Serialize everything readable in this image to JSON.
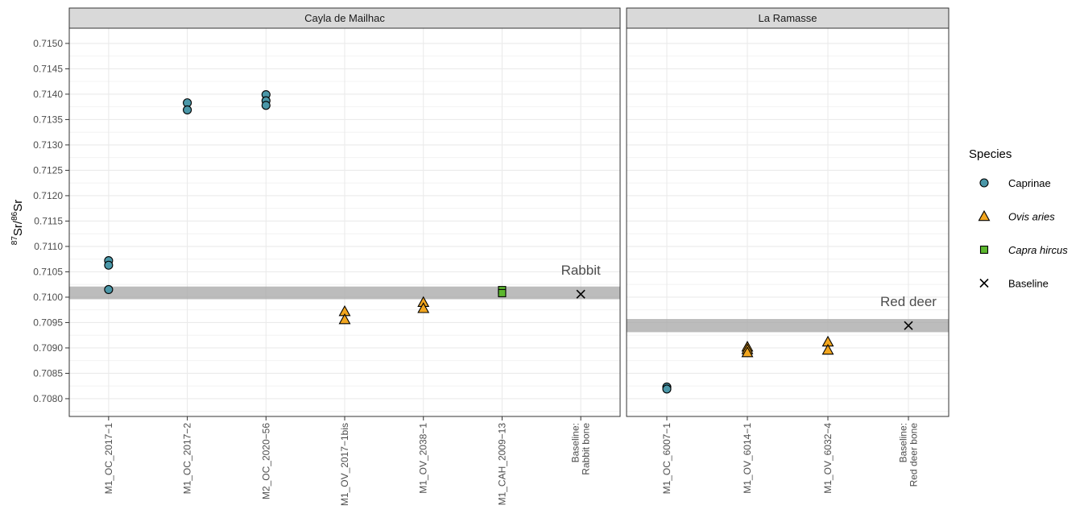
{
  "chart_data": {
    "type": "scatter",
    "ylabel": {
      "sup1": "87",
      "base1": "Sr/",
      "sup2": "86",
      "base2": "Sr"
    },
    "ylim": [
      0.70765,
      0.7153
    ],
    "yticks": [
      "0.7080",
      "0.7085",
      "0.7090",
      "0.7095",
      "0.7100",
      "0.7105",
      "0.7110",
      "0.7115",
      "0.7120",
      "0.7125",
      "0.7130",
      "0.7135",
      "0.7140",
      "0.7145",
      "0.7150"
    ],
    "grid": true,
    "legend": {
      "position": "right",
      "title": "Species",
      "entries": [
        {
          "label": "Caprinae",
          "italic": false,
          "shape": "circle",
          "color": "#4a97a8"
        },
        {
          "label": "Ovis aries",
          "italic": true,
          "shape": "triangle",
          "color": "#f2a61f"
        },
        {
          "label": "Capra hircus",
          "italic": true,
          "shape": "square",
          "color": "#5cb82e"
        },
        {
          "label": "Baseline",
          "italic": false,
          "shape": "cross",
          "color": "#000000"
        }
      ]
    },
    "panels": [
      {
        "title": "Cayla de Mailhac",
        "categories": [
          [
            "M1_OC_2017−1"
          ],
          [
            "M1_OC_2017−2"
          ],
          [
            "M2_OC_2020−56"
          ],
          [
            "M1_OV_2017−1bis"
          ],
          [
            "M1_OV_2038−1"
          ],
          [
            "M1_CAH_2009−13"
          ],
          [
            "Baseline:",
            "Rabbit bone"
          ]
        ],
        "band": [
          0.70996,
          0.71021
        ],
        "annotation": {
          "text": "Rabbit",
          "category": 6,
          "y": 0.71032
        },
        "points": [
          {
            "category": 0,
            "y": 0.71072,
            "species": "Caprinae"
          },
          {
            "category": 0,
            "y": 0.71063,
            "species": "Caprinae"
          },
          {
            "category": 0,
            "y": 0.71015,
            "species": "Caprinae"
          },
          {
            "category": 1,
            "y": 0.71383,
            "species": "Caprinae"
          },
          {
            "category": 1,
            "y": 0.71369,
            "species": "Caprinae"
          },
          {
            "category": 2,
            "y": 0.71399,
            "species": "Caprinae"
          },
          {
            "category": 2,
            "y": 0.71387,
            "species": "Caprinae"
          },
          {
            "category": 2,
            "y": 0.71378,
            "species": "Caprinae"
          },
          {
            "category": 3,
            "y": 0.70972,
            "species": "Ovis aries"
          },
          {
            "category": 3,
            "y": 0.70956,
            "species": "Ovis aries"
          },
          {
            "category": 4,
            "y": 0.7099,
            "species": "Ovis aries"
          },
          {
            "category": 4,
            "y": 0.70978,
            "species": "Ovis aries"
          },
          {
            "category": 5,
            "y": 0.71014,
            "species": "Capra hircus"
          },
          {
            "category": 5,
            "y": 0.71008,
            "species": "Capra hircus"
          },
          {
            "category": 6,
            "y": 0.71006,
            "species": "Baseline"
          }
        ]
      },
      {
        "title": "La Ramasse",
        "categories": [
          [
            "M1_OC_6007−1"
          ],
          [
            "M1_OV_6014−1"
          ],
          [
            "M1_OV_6032−4"
          ],
          [
            "Baseline:",
            "Red deer bone"
          ]
        ],
        "band": [
          0.70931,
          0.70957
        ],
        "annotation": {
          "text": "Red deer",
          "category": 3,
          "y": 0.7097
        },
        "points": [
          {
            "category": 0,
            "y": 0.70823,
            "species": "Caprinae"
          },
          {
            "category": 0,
            "y": 0.70819,
            "species": "Caprinae"
          },
          {
            "category": 1,
            "y": 0.70902,
            "species": "Ovis aries"
          },
          {
            "category": 1,
            "y": 0.70897,
            "species": "Ovis aries"
          },
          {
            "category": 1,
            "y": 0.70891,
            "species": "Ovis aries"
          },
          {
            "category": 2,
            "y": 0.70912,
            "species": "Ovis aries"
          },
          {
            "category": 2,
            "y": 0.70896,
            "species": "Ovis aries"
          },
          {
            "category": 3,
            "y": 0.70944,
            "species": "Baseline"
          }
        ]
      }
    ]
  }
}
